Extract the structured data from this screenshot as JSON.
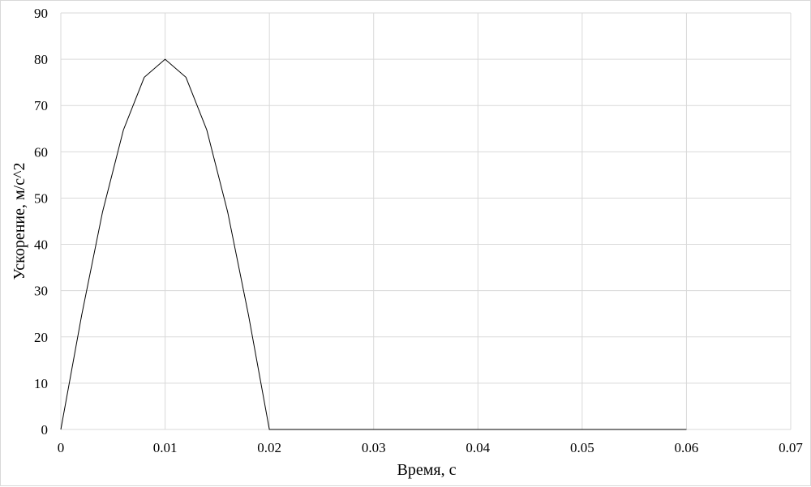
{
  "chart_data": {
    "type": "line",
    "title": "",
    "xlabel": "Время, с",
    "ylabel": "Ускорение, м/с^2",
    "xlim": [
      0,
      0.07
    ],
    "ylim": [
      0,
      90
    ],
    "x_ticks": [
      "0",
      "0.01",
      "0.02",
      "0.03",
      "0.04",
      "0.05",
      "0.06",
      "0.07"
    ],
    "y_ticks": [
      "0",
      "10",
      "20",
      "30",
      "40",
      "50",
      "60",
      "70",
      "80",
      "90"
    ],
    "grid": true,
    "legend": "none",
    "colors": {
      "series": "#000000",
      "grid": "#d9d9d9"
    },
    "series": [
      {
        "x": [
          0,
          0.002,
          0.004,
          0.006,
          0.008,
          0.01,
          0.012,
          0.014,
          0.016,
          0.018,
          0.02,
          0.03,
          0.04,
          0.05,
          0.06
        ],
        "y": [
          0,
          24.7,
          47.0,
          64.7,
          76.1,
          80.0,
          76.1,
          64.7,
          47.0,
          24.7,
          0,
          0,
          0,
          0,
          0
        ]
      }
    ]
  }
}
